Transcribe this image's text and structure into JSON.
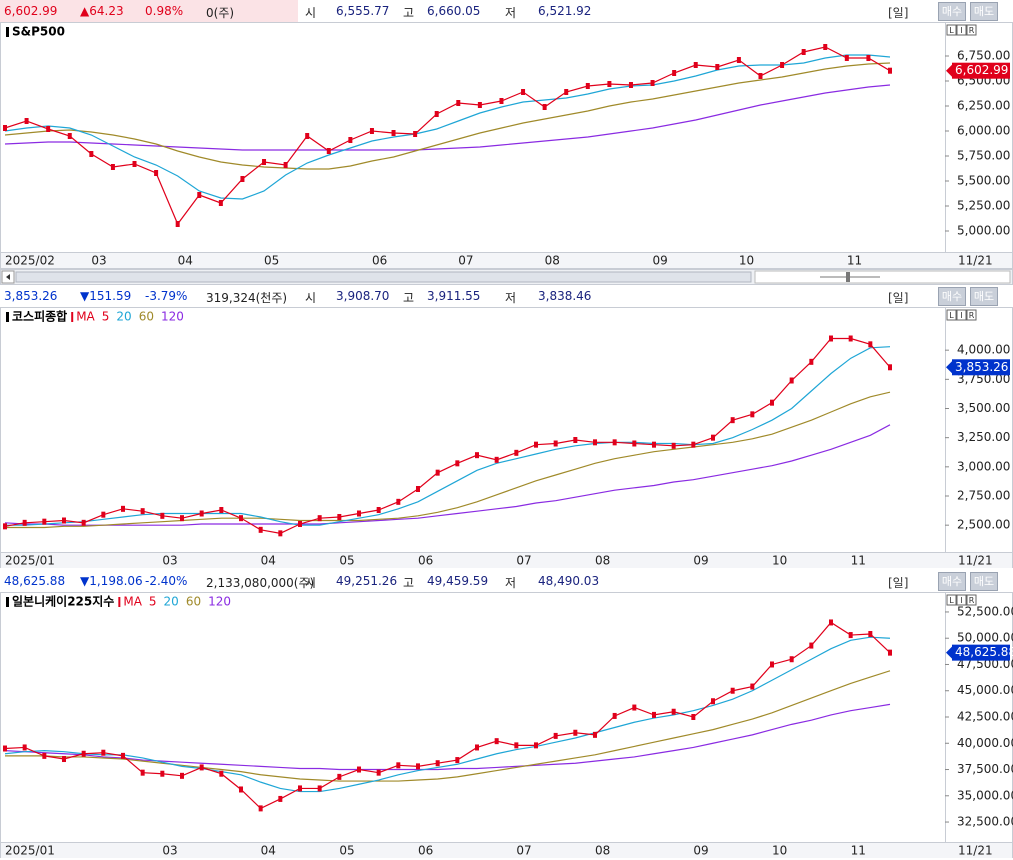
{
  "chart_data": [
    {
      "type": "line",
      "title": "S&P500",
      "quote": {
        "price": "6,602.99",
        "change": "▲64.23",
        "pct": "0.98%",
        "volume": "0(주)",
        "open_label": "시",
        "open": "6,555.77",
        "high_label": "고",
        "high": "6,660.05",
        "low_label": "저",
        "low": "6,521.92"
      },
      "quote_color": "#e0001b",
      "period": "[일]",
      "buy": "매수",
      "sell": "매도",
      "scale_buttons": [
        "L",
        "I",
        "R"
      ],
      "end_label": "11/21",
      "categories": [
        "2025/02",
        null,
        null,
        null,
        "03",
        null,
        null,
        null,
        "04",
        null,
        null,
        null,
        "05",
        null,
        null,
        null,
        null,
        "06",
        null,
        null,
        null,
        "07",
        null,
        null,
        null,
        "08",
        null,
        null,
        null,
        null,
        "09",
        null,
        null,
        null,
        "10",
        null,
        null,
        null,
        null,
        "11",
        null,
        null
      ],
      "ylim": [
        4790,
        7090
      ],
      "yticks": [
        {
          "value": 5000,
          "label": "5,000.00"
        },
        {
          "value": 5250,
          "label": "5,250.00"
        },
        {
          "value": 5500,
          "label": "5,500.00"
        },
        {
          "value": 5750,
          "label": "5,750.00"
        },
        {
          "value": 6000,
          "label": "6,000.00"
        },
        {
          "value": 6250,
          "label": "6,250.00"
        },
        {
          "value": 6500,
          "label": "6,500.00"
        },
        {
          "value": 6750,
          "label": "6,750.00"
        }
      ],
      "series": [
        {
          "color": "#e0001b",
          "values": [
            6030,
            6100,
            6020,
            5950,
            5770,
            5640,
            5670,
            5580,
            5070,
            5360,
            5280,
            5520,
            5690,
            5660,
            5950,
            5800,
            5910,
            6000,
            5980,
            5970,
            6170,
            6280,
            6260,
            6300,
            6390,
            6240,
            6390,
            6450,
            6470,
            6460,
            6480,
            6580,
            6660,
            6640,
            6710,
            6550,
            6660,
            6790,
            6840,
            6730,
            6730,
            6602.99
          ]
        },
        {
          "color": "#1fa6d6",
          "values": [
            6000,
            6030,
            6050,
            6030,
            5960,
            5850,
            5740,
            5660,
            5550,
            5400,
            5330,
            5320,
            5400,
            5560,
            5680,
            5760,
            5830,
            5900,
            5940,
            5970,
            6020,
            6100,
            6180,
            6240,
            6290,
            6310,
            6330,
            6370,
            6420,
            6450,
            6460,
            6500,
            6550,
            6610,
            6650,
            6660,
            6660,
            6680,
            6730,
            6760,
            6760,
            6740
          ]
        },
        {
          "color": "#a08a2a",
          "values": [
            5960,
            5980,
            6000,
            6010,
            5990,
            5960,
            5920,
            5870,
            5800,
            5740,
            5690,
            5660,
            5640,
            5630,
            5620,
            5620,
            5650,
            5700,
            5740,
            5800,
            5860,
            5920,
            5980,
            6030,
            6080,
            6120,
            6160,
            6200,
            6250,
            6290,
            6320,
            6360,
            6400,
            6440,
            6480,
            6510,
            6540,
            6580,
            6620,
            6650,
            6670,
            6680
          ]
        },
        {
          "color": "#8a2be2",
          "values": [
            5870,
            5880,
            5890,
            5890,
            5880,
            5870,
            5860,
            5850,
            5840,
            5830,
            5820,
            5810,
            5810,
            5810,
            5810,
            5810,
            5810,
            5810,
            5810,
            5810,
            5820,
            5830,
            5840,
            5860,
            5880,
            5900,
            5920,
            5940,
            5970,
            6000,
            6030,
            6070,
            6110,
            6160,
            6210,
            6260,
            6300,
            6340,
            6380,
            6410,
            6440,
            6460
          ]
        }
      ]
    },
    {
      "type": "line",
      "title": "코스피종합",
      "legend_title": "MA",
      "quote": {
        "price": "3,853.26",
        "change": "▼151.59",
        "pct": "-3.79%",
        "volume": "319,324(천주)",
        "open_label": "시",
        "open": "3,908.70",
        "high_label": "고",
        "high": "3,911.55",
        "low_label": "저",
        "low": "3,838.46"
      },
      "quote_color": "#0033cc",
      "period": "[일]",
      "buy": "매수",
      "sell": "매도",
      "scale_buttons": [
        "L",
        "I",
        "R"
      ],
      "end_label": "11/21",
      "categories": [
        "2025/01",
        null,
        null,
        null,
        null,
        null,
        null,
        null,
        "03",
        null,
        null,
        null,
        null,
        "04",
        null,
        null,
        null,
        "05",
        null,
        null,
        null,
        "06",
        null,
        null,
        null,
        null,
        "07",
        null,
        null,
        null,
        "08",
        null,
        null,
        null,
        null,
        "09",
        null,
        null,
        null,
        "10",
        null,
        null,
        null,
        "11",
        null,
        null
      ],
      "ylim": [
        2270,
        4370
      ],
      "yticks": [
        {
          "value": 2500,
          "label": "2,500.00"
        },
        {
          "value": 2750,
          "label": "2,750.00"
        },
        {
          "value": 3000,
          "label": "3,000.00"
        },
        {
          "value": 3250,
          "label": "3,250.00"
        },
        {
          "value": 3500,
          "label": "3,500.00"
        },
        {
          "value": 3750,
          "label": "3,750.00"
        },
        {
          "value": 4000,
          "label": "4,000.00"
        }
      ],
      "series": [
        {
          "name": "5",
          "color": "#e0001b",
          "values": [
            2490,
            2520,
            2530,
            2540,
            2520,
            2590,
            2640,
            2620,
            2580,
            2560,
            2600,
            2630,
            2560,
            2460,
            2430,
            2510,
            2560,
            2570,
            2600,
            2630,
            2700,
            2810,
            2950,
            3030,
            3100,
            3060,
            3120,
            3190,
            3200,
            3230,
            3210,
            3210,
            3200,
            3190,
            3180,
            3190,
            3250,
            3400,
            3450,
            3550,
            3740,
            3900,
            4100,
            4100,
            4050,
            3853.26
          ]
        },
        {
          "name": "20",
          "color": "#1fa6d6",
          "values": [
            2500,
            2500,
            2510,
            2520,
            2530,
            2550,
            2570,
            2590,
            2600,
            2600,
            2600,
            2600,
            2600,
            2570,
            2530,
            2500,
            2500,
            2530,
            2560,
            2590,
            2640,
            2700,
            2790,
            2880,
            2970,
            3030,
            3070,
            3110,
            3150,
            3180,
            3200,
            3210,
            3210,
            3200,
            3200,
            3190,
            3200,
            3250,
            3320,
            3400,
            3500,
            3650,
            3800,
            3930,
            4020,
            4030
          ]
        },
        {
          "name": "60",
          "color": "#a08a2a",
          "values": [
            2480,
            2480,
            2480,
            2490,
            2490,
            2500,
            2510,
            2520,
            2530,
            2540,
            2550,
            2560,
            2560,
            2560,
            2550,
            2540,
            2540,
            2540,
            2540,
            2550,
            2560,
            2580,
            2610,
            2650,
            2700,
            2760,
            2820,
            2880,
            2930,
            2980,
            3030,
            3070,
            3100,
            3130,
            3150,
            3170,
            3190,
            3210,
            3240,
            3280,
            3340,
            3400,
            3470,
            3540,
            3600,
            3640
          ]
        },
        {
          "name": "120",
          "color": "#8a2be2",
          "values": [
            2520,
            2510,
            2510,
            2500,
            2500,
            2500,
            2500,
            2500,
            2500,
            2500,
            2510,
            2510,
            2510,
            2510,
            2510,
            2510,
            2510,
            2520,
            2530,
            2540,
            2550,
            2560,
            2580,
            2600,
            2620,
            2640,
            2660,
            2690,
            2710,
            2740,
            2770,
            2800,
            2820,
            2840,
            2870,
            2890,
            2920,
            2950,
            2980,
            3010,
            3050,
            3100,
            3150,
            3210,
            3270,
            3360
          ]
        }
      ]
    },
    {
      "type": "line",
      "title": "일본니케이225지수",
      "legend_title": "MA",
      "quote": {
        "price": "48,625.88",
        "change": "▼1,198.06",
        "pct": "-2.40%",
        "volume": "2,133,080,000(주)",
        "open_label": "시",
        "open": "49,251.26",
        "high_label": "고",
        "high": "49,459.59",
        "low_label": "저",
        "low": "48,490.03"
      },
      "quote_color": "#0033cc",
      "period": "[일]",
      "buy": "매수",
      "sell": "매도",
      "scale_buttons": [
        "L",
        "I",
        "R"
      ],
      "end_label": "11/21",
      "categories": [
        "2025/01",
        null,
        null,
        null,
        null,
        null,
        null,
        null,
        "03",
        null,
        null,
        null,
        null,
        "04",
        null,
        null,
        null,
        "05",
        null,
        null,
        null,
        "06",
        null,
        null,
        null,
        null,
        "07",
        null,
        null,
        null,
        "08",
        null,
        null,
        null,
        null,
        "09",
        null,
        null,
        null,
        "10",
        null,
        null,
        null,
        "11",
        null,
        null
      ],
      "ylim": [
        30600,
        54400
      ],
      "yticks": [
        {
          "value": 32500,
          "label": "32,500.00"
        },
        {
          "value": 35000,
          "label": "35,000.00"
        },
        {
          "value": 37500,
          "label": "37,500.00"
        },
        {
          "value": 40000,
          "label": "40,000.00"
        },
        {
          "value": 42500,
          "label": "42,500.00"
        },
        {
          "value": 45000,
          "label": "45,000.00"
        },
        {
          "value": 47500,
          "label": "47,500.00"
        },
        {
          "value": 50000,
          "label": "50,000.00"
        },
        {
          "value": 52500,
          "label": "52,500.00"
        }
      ],
      "series": [
        {
          "name": "5",
          "color": "#e0001b",
          "values": [
            39500,
            39600,
            38800,
            38500,
            39000,
            39100,
            38800,
            37200,
            37100,
            36900,
            37700,
            37100,
            35600,
            33800,
            34700,
            35700,
            35700,
            36800,
            37500,
            37200,
            37900,
            37800,
            38100,
            38400,
            39600,
            40200,
            39800,
            39800,
            40700,
            41000,
            40800,
            42600,
            43400,
            42700,
            43000,
            42500,
            44000,
            45000,
            45400,
            47500,
            48000,
            49300,
            51500,
            50300,
            50400,
            48625.88
          ]
        },
        {
          "name": "20",
          "color": "#1fa6d6",
          "values": [
            39000,
            39200,
            39300,
            39200,
            39000,
            38900,
            38900,
            38600,
            38200,
            37800,
            37600,
            37300,
            37000,
            36300,
            35700,
            35400,
            35400,
            35700,
            36100,
            36500,
            37000,
            37400,
            37700,
            38000,
            38500,
            39000,
            39400,
            39700,
            40100,
            40500,
            41000,
            41500,
            42000,
            42400,
            42700,
            43100,
            43600,
            44200,
            45000,
            46000,
            47000,
            48000,
            49000,
            49800,
            50100,
            50000
          ]
        },
        {
          "name": "60",
          "color": "#a08a2a",
          "values": [
            38800,
            38800,
            38800,
            38700,
            38700,
            38600,
            38500,
            38300,
            38100,
            37900,
            37700,
            37500,
            37300,
            37000,
            36800,
            36600,
            36500,
            36400,
            36400,
            36400,
            36400,
            36500,
            36600,
            36800,
            37100,
            37400,
            37700,
            38000,
            38300,
            38600,
            38900,
            39300,
            39700,
            40100,
            40500,
            40900,
            41300,
            41800,
            42300,
            42900,
            43600,
            44300,
            45000,
            45700,
            46300,
            46900
          ]
        },
        {
          "name": "120",
          "color": "#8a2be2",
          "values": [
            39300,
            39200,
            39100,
            39000,
            38900,
            38700,
            38600,
            38400,
            38300,
            38200,
            38100,
            38000,
            37900,
            37800,
            37700,
            37600,
            37600,
            37500,
            37500,
            37500,
            37500,
            37500,
            37500,
            37600,
            37600,
            37700,
            37800,
            37900,
            38000,
            38100,
            38300,
            38500,
            38700,
            39000,
            39300,
            39600,
            40000,
            40400,
            40800,
            41300,
            41800,
            42200,
            42700,
            43100,
            43400,
            43700
          ]
        }
      ]
    }
  ]
}
